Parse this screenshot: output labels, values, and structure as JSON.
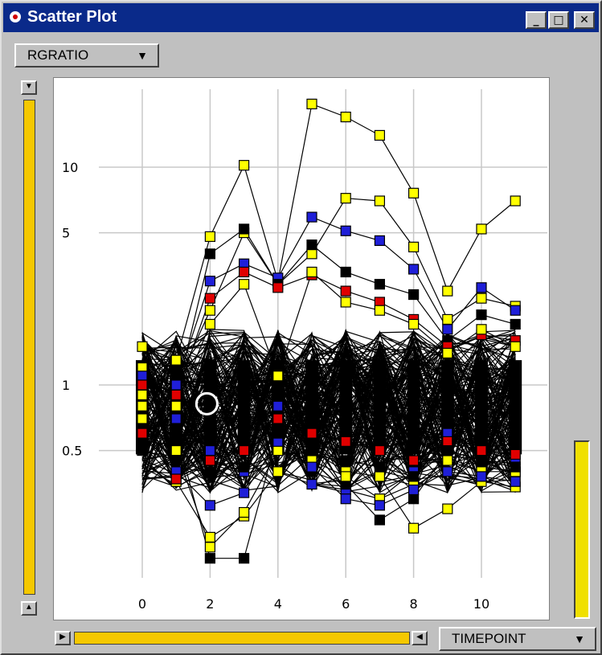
{
  "window": {
    "title": "Scatter Plot",
    "controls": {
      "minimize": "_",
      "maximize": "□",
      "close": "✕"
    }
  },
  "y_selector": {
    "label": "RGRATIO",
    "arrow": "▼"
  },
  "x_selector": {
    "label": "TIMEPOINT",
    "arrow": "▼"
  },
  "icons": {
    "window": "record-icon",
    "dropdown": "triangle-down-icon",
    "slider_up": "triangle-down-icon",
    "slider_down": "triangle-up-icon",
    "slider_left": "triangle-right-icon",
    "slider_right": "triangle-left-icon"
  },
  "colors": {
    "title_bar": "#0a2a8a",
    "slider_fill": "#f5c800",
    "gauge_fill": "#f0e000",
    "point_yellow": "#ffff00",
    "point_blue": "#1f1fd8",
    "point_black": "#000000",
    "point_red": "#e00000"
  },
  "chart_data": {
    "type": "line",
    "x_ticks": [
      "0",
      "2",
      "4",
      "6",
      "8",
      "10"
    ],
    "y_ticks": [
      "0.5",
      "1",
      "5",
      "10"
    ],
    "y_scale": "log",
    "xlim": [
      0,
      11
    ],
    "grid": true,
    "x": [
      0,
      1,
      2,
      3,
      4,
      5,
      6,
      7,
      8,
      9,
      10,
      11
    ],
    "series": [
      {
        "color": "yellow",
        "values": [
          1.5,
          1.3,
          4.8,
          10.2,
          3.0,
          19.5,
          17.0,
          14.0,
          7.6,
          2.7,
          5.2,
          7.0
        ]
      },
      {
        "color": "yellow",
        "values": [
          1.2,
          1.0,
          2.2,
          5.0,
          2.9,
          4.0,
          7.2,
          7.0,
          4.3,
          2.0,
          2.5,
          2.3
        ]
      },
      {
        "color": "blue",
        "values": [
          1.1,
          1.0,
          3.0,
          3.6,
          3.1,
          5.9,
          5.1,
          4.6,
          3.4,
          1.8,
          2.8,
          2.2
        ]
      },
      {
        "color": "black",
        "values": [
          1.0,
          0.9,
          4.0,
          5.2,
          2.9,
          4.4,
          3.3,
          2.9,
          2.6,
          1.6,
          2.1,
          1.9
        ]
      },
      {
        "color": "red",
        "values": [
          1.0,
          0.9,
          2.5,
          3.3,
          2.8,
          3.2,
          2.7,
          2.4,
          2.0,
          1.5,
          1.7,
          1.6
        ]
      },
      {
        "color": "yellow",
        "values": [
          0.9,
          0.8,
          1.9,
          2.9,
          1.1,
          3.3,
          2.4,
          2.2,
          1.9,
          1.4,
          1.8,
          1.5
        ]
      },
      {
        "color": "blue",
        "values": [
          0.8,
          0.7,
          0.5,
          0.4,
          0.8,
          0.35,
          0.33,
          0.3,
          0.4,
          0.6,
          0.5,
          0.45
        ]
      },
      {
        "color": "yellow",
        "values": [
          0.8,
          0.36,
          0.2,
          0.25,
          0.4,
          0.5,
          0.4,
          0.38,
          0.22,
          0.27,
          0.36,
          0.34
        ]
      },
      {
        "color": "black",
        "values": [
          0.7,
          0.6,
          0.16,
          0.16,
          0.6,
          0.4,
          0.35,
          0.24,
          0.3,
          0.5,
          0.42,
          0.4
        ]
      },
      {
        "color": "yellow",
        "values": [
          0.7,
          0.5,
          0.18,
          0.26,
          0.5,
          0.45,
          0.38,
          0.3,
          0.35,
          0.45,
          0.4,
          0.4
        ]
      },
      {
        "color": "blue",
        "values": [
          0.6,
          0.4,
          0.28,
          0.32,
          0.55,
          0.42,
          0.3,
          0.28,
          0.33,
          0.4,
          0.38,
          0.36
        ]
      },
      {
        "color": "red",
        "values": [
          0.6,
          0.37,
          0.45,
          0.5,
          0.7,
          0.6,
          0.55,
          0.5,
          0.45,
          0.55,
          0.5,
          0.48
        ]
      },
      {
        "color": "black",
        "values": [
          0.5,
          0.45,
          0.4,
          0.42,
          0.6,
          0.5,
          0.45,
          0.42,
          0.38,
          0.5,
          0.45,
          0.42
        ]
      }
    ]
  }
}
